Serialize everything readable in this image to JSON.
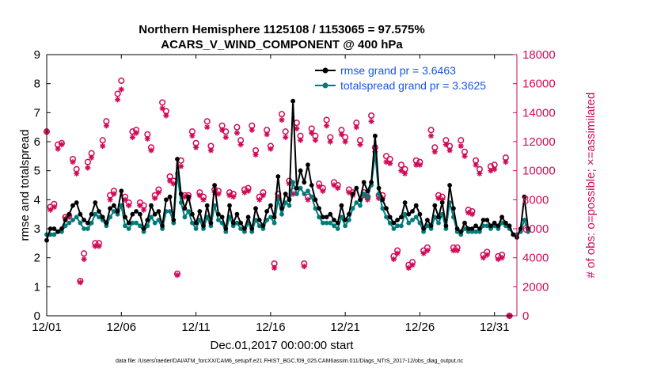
{
  "chart_data": {
    "type": "line",
    "title_line1": "Northern Hemisphere 1125108 / 1153065 = 97.575%",
    "title_line2": "ACARS_V_WIND_COMPONENT @ 400 hPa",
    "xlabel": "Dec.01,2017 00:00:00 start",
    "ylabel_left": "rmse and totalspread",
    "ylabel_right": "# of obs: o=possible; ×=assimilated",
    "footnote": "data file: /Users/raeder/DAI/ATM_forcXX/CAM6_setup/f.e21.FHIST_BGC.f09_025.CAM6assim.011/Diags_NTrS_2017-12/obs_diag_output.nc",
    "xlim": [
      0,
      31.5
    ],
    "ylim_left": [
      0,
      9
    ],
    "ylim_right": [
      0,
      18000
    ],
    "x_ticks": [
      0,
      5,
      10,
      15,
      20,
      25,
      30
    ],
    "x_tick_labels": [
      "12/01",
      "12/06",
      "12/11",
      "12/16",
      "12/21",
      "12/26",
      "12/31"
    ],
    "y_ticks_left": [
      0,
      1,
      2,
      3,
      4,
      5,
      6,
      7,
      8,
      9
    ],
    "y_ticks_right": [
      0,
      2000,
      4000,
      6000,
      8000,
      10000,
      12000,
      14000,
      16000,
      18000
    ],
    "y_tick_labels_left": [
      "0",
      "1",
      "2",
      "3",
      "4",
      "5",
      "6",
      "7",
      "8",
      "9"
    ],
    "y_tick_labels_right": [
      "0",
      "2000",
      "4000",
      "6000",
      "8000",
      "10000",
      "12000",
      "14000",
      "16000",
      "18000"
    ],
    "x_step_days": 0.25,
    "series": [
      {
        "name": "rmse",
        "legend": "rmse grand pr = 3.6463",
        "color": "#000000",
        "values": [
          2.6,
          3.0,
          3.0,
          2.9,
          3.0,
          3.3,
          3.5,
          3.8,
          3.9,
          3.5,
          3.3,
          3.2,
          3.5,
          3.9,
          3.6,
          3.4,
          3.2,
          3.7,
          3.8,
          3.6,
          4.3,
          3.4,
          3.2,
          3.5,
          3.6,
          3.5,
          3.0,
          3.3,
          3.8,
          3.5,
          3.6,
          3.1,
          4.0,
          4.1,
          3.3,
          5.4,
          4.2,
          3.7,
          4.1,
          3.5,
          3.2,
          3.6,
          3.1,
          3.8,
          3.2,
          4.5,
          3.5,
          3.4,
          3.0,
          3.8,
          3.2,
          3.5,
          3.2,
          3.0,
          3.4,
          3.0,
          3.7,
          3.3,
          3.1,
          3.6,
          3.8,
          3.4,
          4.8,
          3.7,
          4.2,
          4.0,
          7.4,
          4.4,
          5.0,
          4.6,
          5.2,
          4.5,
          4.0,
          3.7,
          3.4,
          3.4,
          3.5,
          3.3,
          3.2,
          3.8,
          3.3,
          3.5,
          4.2,
          4.4,
          4.0,
          4.6,
          4.3,
          4.6,
          6.2,
          4.4,
          4.0,
          3.7,
          3.4,
          3.2,
          3.3,
          3.4,
          3.9,
          3.5,
          3.6,
          3.8,
          3.5,
          3.0,
          3.3,
          3.1,
          3.8,
          3.4,
          3.9,
          3.1,
          4.5,
          3.7,
          3.0,
          2.9,
          3.2,
          3.0,
          3.0,
          3.1,
          3.0,
          3.3,
          3.3,
          3.1,
          3.2,
          3.1,
          3.4,
          3.2,
          3.1,
          2.8,
          2.7,
          3.0,
          4.1,
          3.0
        ]
      },
      {
        "name": "totalspread",
        "legend": "totalspread grand pr = 3.3625",
        "color": "#007b7b",
        "values": [
          2.8,
          2.8,
          2.8,
          2.9,
          2.9,
          3.1,
          3.2,
          3.3,
          3.4,
          3.2,
          3.0,
          3.0,
          3.2,
          3.5,
          3.4,
          3.3,
          3.1,
          3.4,
          3.6,
          3.5,
          3.8,
          3.1,
          3.0,
          3.2,
          3.2,
          3.1,
          2.9,
          3.1,
          3.4,
          3.2,
          3.3,
          3.0,
          3.6,
          3.6,
          3.2,
          4.9,
          3.9,
          3.4,
          3.6,
          3.2,
          3.0,
          3.3,
          3.0,
          3.4,
          3.1,
          3.8,
          3.3,
          3.2,
          2.9,
          3.4,
          3.1,
          3.2,
          3.0,
          2.9,
          3.2,
          2.9,
          3.3,
          3.1,
          3.0,
          3.3,
          3.4,
          3.2,
          4.0,
          3.5,
          3.9,
          3.8,
          4.6,
          4.2,
          4.4,
          4.2,
          4.3,
          4.1,
          3.7,
          3.4,
          3.2,
          3.2,
          3.2,
          3.1,
          3.0,
          3.4,
          3.1,
          3.3,
          3.7,
          3.9,
          3.8,
          4.2,
          4.1,
          4.5,
          5.6,
          4.2,
          3.7,
          3.4,
          3.2,
          3.0,
          3.1,
          3.1,
          3.5,
          3.2,
          3.3,
          3.4,
          3.2,
          2.9,
          3.1,
          3.0,
          3.4,
          3.2,
          3.5,
          3.0,
          3.9,
          3.4,
          2.9,
          2.8,
          3.0,
          2.9,
          2.9,
          2.9,
          2.9,
          3.1,
          3.1,
          3.0,
          3.1,
          3.0,
          3.2,
          3.1,
          3.0,
          2.8,
          2.8,
          2.9,
          3.3,
          2.9
        ]
      }
    ],
    "obs_possible": {
      "legend": "o = possible",
      "color": "#d10a58",
      "points": [
        [
          0.0,
          12700
        ],
        [
          0.25,
          7500
        ],
        [
          0.5,
          7700
        ],
        [
          0.75,
          11800
        ],
        [
          1.0,
          11900
        ],
        [
          1.25,
          6800
        ],
        [
          1.5,
          6900
        ],
        [
          1.75,
          10800
        ],
        [
          2.0,
          10100
        ],
        [
          2.25,
          2400
        ],
        [
          2.5,
          4300
        ],
        [
          2.75,
          10600
        ],
        [
          3.0,
          11200
        ],
        [
          3.25,
          5000
        ],
        [
          3.5,
          5000
        ],
        [
          3.75,
          12100
        ],
        [
          4.0,
          13400
        ],
        [
          4.25,
          8300
        ],
        [
          4.5,
          8600
        ],
        [
          4.75,
          15300
        ],
        [
          5.0,
          16200
        ],
        [
          5.25,
          8200
        ],
        [
          5.5,
          7800
        ],
        [
          5.75,
          12700
        ],
        [
          6.0,
          12800
        ],
        [
          6.25,
          7800
        ],
        [
          6.5,
          7600
        ],
        [
          6.75,
          12500
        ],
        [
          7.0,
          11600
        ],
        [
          7.25,
          8300
        ],
        [
          7.5,
          8700
        ],
        [
          7.75,
          14700
        ],
        [
          8.0,
          14100
        ],
        [
          8.25,
          9600
        ],
        [
          8.5,
          9300
        ],
        [
          8.75,
          2900
        ],
        [
          9.0,
          10700
        ],
        [
          9.25,
          8300
        ],
        [
          9.5,
          8300
        ],
        [
          9.75,
          12700
        ],
        [
          10.0,
          11900
        ],
        [
          10.25,
          8500
        ],
        [
          10.5,
          8200
        ],
        [
          10.75,
          13400
        ],
        [
          11.0,
          11700
        ],
        [
          11.25,
          8700
        ],
        [
          11.5,
          8600
        ],
        [
          11.75,
          13100
        ],
        [
          12.0,
          12700
        ],
        [
          12.25,
          8500
        ],
        [
          12.5,
          8400
        ],
        [
          12.75,
          13000
        ],
        [
          13.0,
          12100
        ],
        [
          13.25,
          8700
        ],
        [
          13.5,
          8800
        ],
        [
          13.75,
          13100
        ],
        [
          14.0,
          11400
        ],
        [
          14.25,
          8200
        ],
        [
          14.5,
          8500
        ],
        [
          14.75,
          12800
        ],
        [
          15.0,
          11700
        ],
        [
          15.25,
          3600
        ],
        [
          15.5,
          8400
        ],
        [
          15.75,
          13900
        ],
        [
          16.0,
          12700
        ],
        [
          16.25,
          9300
        ],
        [
          16.5,
          8600
        ],
        [
          16.75,
          13300
        ],
        [
          17.0,
          12400
        ],
        [
          17.25,
          3600
        ],
        [
          17.5,
          8200
        ],
        [
          17.75,
          12900
        ],
        [
          18.0,
          12400
        ],
        [
          18.25,
          9100
        ],
        [
          18.5,
          8800
        ],
        [
          18.75,
          13500
        ],
        [
          19.0,
          12300
        ],
        [
          19.25,
          9200
        ],
        [
          19.5,
          9000
        ],
        [
          19.75,
          12800
        ],
        [
          20.0,
          12300
        ],
        [
          20.25,
          8700
        ],
        [
          20.5,
          8500
        ],
        [
          20.75,
          13300
        ],
        [
          21.0,
          12100
        ],
        [
          21.25,
          8500
        ],
        [
          21.5,
          8200
        ],
        [
          21.75,
          13800
        ],
        [
          22.0,
          11600
        ],
        [
          22.25,
          8300
        ],
        [
          22.5,
          8300
        ],
        [
          22.75,
          11000
        ],
        [
          23.0,
          10800
        ],
        [
          23.25,
          4100
        ],
        [
          23.5,
          4500
        ],
        [
          23.75,
          10400
        ],
        [
          24.0,
          10100
        ],
        [
          24.25,
          3500
        ],
        [
          24.5,
          3700
        ],
        [
          24.75,
          10700
        ],
        [
          25.0,
          10600
        ],
        [
          25.25,
          4500
        ],
        [
          25.5,
          4700
        ],
        [
          25.75,
          12800
        ],
        [
          26.0,
          11600
        ],
        [
          26.25,
          8300
        ],
        [
          26.5,
          8200
        ],
        [
          26.75,
          12100
        ],
        [
          27.0,
          11700
        ],
        [
          27.25,
          4700
        ],
        [
          27.5,
          4700
        ],
        [
          27.75,
          12100
        ],
        [
          28.0,
          11300
        ],
        [
          28.25,
          7300
        ],
        [
          28.5,
          7200
        ],
        [
          28.75,
          10700
        ],
        [
          29.0,
          10100
        ],
        [
          29.25,
          4200
        ],
        [
          29.5,
          4400
        ],
        [
          29.75,
          10300
        ],
        [
          30.0,
          10400
        ],
        [
          30.25,
          4100
        ],
        [
          30.5,
          4200
        ],
        [
          30.75,
          10900
        ],
        [
          31.0,
          0
        ]
      ]
    },
    "obs_assimilated": {
      "legend": "× = assimilated",
      "color": "#d10a58",
      "points": [
        [
          0.0,
          12700
        ],
        [
          0.25,
          7300
        ],
        [
          0.5,
          7500
        ],
        [
          0.75,
          11500
        ],
        [
          1.0,
          11800
        ],
        [
          1.25,
          6700
        ],
        [
          1.5,
          6800
        ],
        [
          1.75,
          10600
        ],
        [
          2.0,
          9800
        ],
        [
          2.25,
          2300
        ],
        [
          2.5,
          3900
        ],
        [
          2.75,
          10200
        ],
        [
          3.0,
          10900
        ],
        [
          3.25,
          4800
        ],
        [
          3.5,
          4800
        ],
        [
          3.75,
          11700
        ],
        [
          4.0,
          13100
        ],
        [
          4.25,
          8000
        ],
        [
          4.5,
          8400
        ],
        [
          4.75,
          14900
        ],
        [
          5.0,
          15600
        ],
        [
          5.25,
          8000
        ],
        [
          5.5,
          7600
        ],
        [
          5.75,
          12300
        ],
        [
          6.0,
          12600
        ],
        [
          6.25,
          7600
        ],
        [
          6.5,
          7300
        ],
        [
          6.75,
          12200
        ],
        [
          7.0,
          11400
        ],
        [
          7.25,
          8100
        ],
        [
          7.5,
          8500
        ],
        [
          7.75,
          14300
        ],
        [
          8.0,
          13800
        ],
        [
          8.25,
          9300
        ],
        [
          8.5,
          9100
        ],
        [
          8.75,
          2800
        ],
        [
          9.0,
          10300
        ],
        [
          9.25,
          8200
        ],
        [
          9.5,
          8100
        ],
        [
          9.75,
          12400
        ],
        [
          10.0,
          11600
        ],
        [
          10.25,
          8300
        ],
        [
          10.5,
          8000
        ],
        [
          10.75,
          13000
        ],
        [
          11.0,
          11400
        ],
        [
          11.25,
          8500
        ],
        [
          11.5,
          8400
        ],
        [
          11.75,
          12800
        ],
        [
          12.0,
          12300
        ],
        [
          12.25,
          8300
        ],
        [
          12.5,
          8200
        ],
        [
          12.75,
          12600
        ],
        [
          13.0,
          11800
        ],
        [
          13.25,
          8500
        ],
        [
          13.5,
          8600
        ],
        [
          13.75,
          12800
        ],
        [
          14.0,
          11100
        ],
        [
          14.25,
          8000
        ],
        [
          14.5,
          8300
        ],
        [
          14.75,
          12500
        ],
        [
          15.0,
          11500
        ],
        [
          15.25,
          3300
        ],
        [
          15.5,
          8200
        ],
        [
          15.75,
          13500
        ],
        [
          16.0,
          12300
        ],
        [
          16.25,
          9100
        ],
        [
          16.5,
          8400
        ],
        [
          16.75,
          12900
        ],
        [
          17.0,
          12100
        ],
        [
          17.25,
          3400
        ],
        [
          17.5,
          8000
        ],
        [
          17.75,
          12600
        ],
        [
          18.0,
          12100
        ],
        [
          18.25,
          8900
        ],
        [
          18.5,
          8600
        ],
        [
          18.75,
          13100
        ],
        [
          19.0,
          12000
        ],
        [
          19.25,
          9000
        ],
        [
          19.5,
          8800
        ],
        [
          19.75,
          12500
        ],
        [
          20.0,
          12000
        ],
        [
          20.25,
          8500
        ],
        [
          20.5,
          8300
        ],
        [
          20.75,
          13000
        ],
        [
          21.0,
          11800
        ],
        [
          21.25,
          8300
        ],
        [
          21.5,
          8000
        ],
        [
          21.75,
          13400
        ],
        [
          22.0,
          11300
        ],
        [
          22.25,
          8100
        ],
        [
          22.5,
          8100
        ],
        [
          22.75,
          10600
        ],
        [
          23.0,
          10500
        ],
        [
          23.25,
          3900
        ],
        [
          23.5,
          4300
        ],
        [
          23.75,
          10000
        ],
        [
          24.0,
          9800
        ],
        [
          24.25,
          3300
        ],
        [
          24.5,
          3500
        ],
        [
          24.75,
          10400
        ],
        [
          25.0,
          10400
        ],
        [
          25.25,
          4300
        ],
        [
          25.5,
          4500
        ],
        [
          25.75,
          12400
        ],
        [
          26.0,
          11300
        ],
        [
          26.25,
          8100
        ],
        [
          26.5,
          8000
        ],
        [
          26.75,
          11800
        ],
        [
          27.0,
          11400
        ],
        [
          27.25,
          4500
        ],
        [
          27.5,
          4500
        ],
        [
          27.75,
          11700
        ],
        [
          28.0,
          11000
        ],
        [
          28.25,
          7100
        ],
        [
          28.5,
          7000
        ],
        [
          28.75,
          10400
        ],
        [
          29.0,
          9800
        ],
        [
          29.25,
          4000
        ],
        [
          29.5,
          4200
        ],
        [
          29.75,
          10000
        ],
        [
          30.0,
          10100
        ],
        [
          30.25,
          3900
        ],
        [
          30.5,
          4000
        ],
        [
          30.75,
          10600
        ],
        [
          31.0,
          0
        ]
      ]
    }
  }
}
